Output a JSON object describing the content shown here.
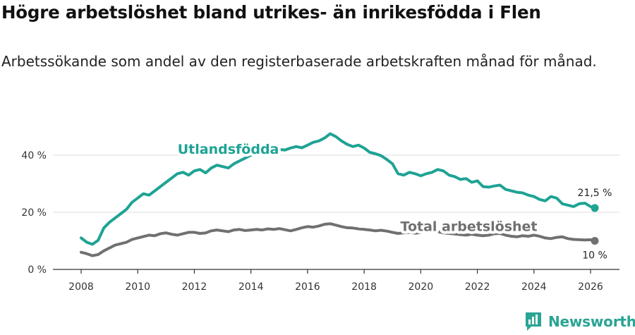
{
  "title": "Högre arbetslöshet bland utrikes- än inrikesfödda i Flen",
  "subtitle": "Arbetssökande som andel av den registerbaserade arbetskraften månad för månad.",
  "brand": {
    "name": "Newsworthy",
    "icon": "newsworthy-logo-icon"
  },
  "colors": {
    "foreign": "#1ea394",
    "total": "#707070",
    "grid": "#dddddd",
    "axis": "#333333"
  },
  "chart_data": {
    "type": "line",
    "title": "Högre arbetslöshet bland utrikes- än inrikesfödda i Flen",
    "xlabel": "",
    "ylabel": "",
    "xlim": [
      2007.5,
      2027.0
    ],
    "ylim": [
      0,
      50
    ],
    "x_ticks": [
      2008,
      2010,
      2012,
      2014,
      2016,
      2018,
      2020,
      2022,
      2024,
      2026
    ],
    "y_ticks": [
      {
        "value": 0,
        "label": "0 %"
      },
      {
        "value": 20,
        "label": "20 %"
      },
      {
        "value": 40,
        "label": "40 %"
      }
    ],
    "grid": true,
    "series": [
      {
        "name": "Utlandsfödda",
        "color": "#1ea394",
        "end_label": "21,5 %",
        "end_value": 21.5,
        "points": [
          [
            2008.0,
            11.0
          ],
          [
            2008.2,
            9.5
          ],
          [
            2008.4,
            8.8
          ],
          [
            2008.6,
            10.2
          ],
          [
            2008.8,
            14.5
          ],
          [
            2009.0,
            16.5
          ],
          [
            2009.2,
            18.0
          ],
          [
            2009.4,
            19.5
          ],
          [
            2009.6,
            21.0
          ],
          [
            2009.8,
            23.5
          ],
          [
            2010.0,
            25.0
          ],
          [
            2010.2,
            26.5
          ],
          [
            2010.4,
            26.0
          ],
          [
            2010.6,
            27.5
          ],
          [
            2010.8,
            29.0
          ],
          [
            2011.0,
            30.5
          ],
          [
            2011.2,
            32.0
          ],
          [
            2011.4,
            33.5
          ],
          [
            2011.6,
            34.0
          ],
          [
            2011.8,
            33.0
          ],
          [
            2012.0,
            34.5
          ],
          [
            2012.2,
            35.0
          ],
          [
            2012.4,
            33.8
          ],
          [
            2012.6,
            35.5
          ],
          [
            2012.8,
            36.5
          ],
          [
            2013.0,
            36.0
          ],
          [
            2013.2,
            35.5
          ],
          [
            2013.4,
            37.0
          ],
          [
            2013.6,
            38.0
          ],
          [
            2013.8,
            39.0
          ],
          [
            2014.0,
            40.0
          ],
          [
            2014.2,
            40.5
          ],
          [
            2014.4,
            41.0
          ],
          [
            2014.6,
            40.8
          ],
          [
            2014.8,
            41.5
          ],
          [
            2015.0,
            42.0
          ],
          [
            2015.2,
            41.8
          ],
          [
            2015.4,
            42.5
          ],
          [
            2015.6,
            43.0
          ],
          [
            2015.8,
            42.6
          ],
          [
            2016.0,
            43.5
          ],
          [
            2016.2,
            44.5
          ],
          [
            2016.4,
            45.0
          ],
          [
            2016.6,
            46.0
          ],
          [
            2016.8,
            47.5
          ],
          [
            2017.0,
            46.5
          ],
          [
            2017.2,
            45.0
          ],
          [
            2017.4,
            43.8
          ],
          [
            2017.6,
            43.0
          ],
          [
            2017.8,
            43.5
          ],
          [
            2018.0,
            42.5
          ],
          [
            2018.2,
            41.0
          ],
          [
            2018.4,
            40.5
          ],
          [
            2018.6,
            39.8
          ],
          [
            2018.8,
            38.5
          ],
          [
            2019.0,
            37.0
          ],
          [
            2019.2,
            33.5
          ],
          [
            2019.4,
            33.0
          ],
          [
            2019.6,
            34.0
          ],
          [
            2019.8,
            33.5
          ],
          [
            2020.0,
            32.8
          ],
          [
            2020.2,
            33.5
          ],
          [
            2020.4,
            34.0
          ],
          [
            2020.6,
            35.0
          ],
          [
            2020.8,
            34.5
          ],
          [
            2021.0,
            33.0
          ],
          [
            2021.2,
            32.5
          ],
          [
            2021.4,
            31.5
          ],
          [
            2021.6,
            31.8
          ],
          [
            2021.8,
            30.5
          ],
          [
            2022.0,
            31.0
          ],
          [
            2022.2,
            29.0
          ],
          [
            2022.4,
            28.8
          ],
          [
            2022.6,
            29.2
          ],
          [
            2022.8,
            29.5
          ],
          [
            2023.0,
            28.0
          ],
          [
            2023.2,
            27.5
          ],
          [
            2023.4,
            27.0
          ],
          [
            2023.6,
            26.8
          ],
          [
            2023.8,
            26.0
          ],
          [
            2024.0,
            25.5
          ],
          [
            2024.2,
            24.5
          ],
          [
            2024.4,
            24.0
          ],
          [
            2024.6,
            25.5
          ],
          [
            2024.8,
            25.0
          ],
          [
            2025.0,
            23.0
          ],
          [
            2025.2,
            22.5
          ],
          [
            2025.4,
            22.0
          ],
          [
            2025.6,
            23.0
          ],
          [
            2025.8,
            23.2
          ],
          [
            2026.0,
            22.0
          ],
          [
            2026.15,
            21.5
          ]
        ]
      },
      {
        "name": "Total arbetslöshet",
        "color": "#707070",
        "end_label": "10 %",
        "end_value": 10,
        "points": [
          [
            2008.0,
            6.0
          ],
          [
            2008.2,
            5.5
          ],
          [
            2008.4,
            4.8
          ],
          [
            2008.6,
            5.2
          ],
          [
            2008.8,
            6.5
          ],
          [
            2009.0,
            7.5
          ],
          [
            2009.2,
            8.5
          ],
          [
            2009.4,
            9.0
          ],
          [
            2009.6,
            9.5
          ],
          [
            2009.8,
            10.5
          ],
          [
            2010.0,
            11.0
          ],
          [
            2010.2,
            11.5
          ],
          [
            2010.4,
            12.0
          ],
          [
            2010.6,
            11.8
          ],
          [
            2010.8,
            12.5
          ],
          [
            2011.0,
            12.8
          ],
          [
            2011.2,
            12.3
          ],
          [
            2011.4,
            12.0
          ],
          [
            2011.6,
            12.5
          ],
          [
            2011.8,
            13.0
          ],
          [
            2012.0,
            13.0
          ],
          [
            2012.2,
            12.6
          ],
          [
            2012.4,
            12.8
          ],
          [
            2012.6,
            13.5
          ],
          [
            2012.8,
            13.8
          ],
          [
            2013.0,
            13.5
          ],
          [
            2013.2,
            13.2
          ],
          [
            2013.4,
            13.8
          ],
          [
            2013.6,
            14.0
          ],
          [
            2013.8,
            13.6
          ],
          [
            2014.0,
            13.8
          ],
          [
            2014.2,
            14.0
          ],
          [
            2014.4,
            13.8
          ],
          [
            2014.6,
            14.2
          ],
          [
            2014.8,
            14.0
          ],
          [
            2015.0,
            14.3
          ],
          [
            2015.2,
            13.9
          ],
          [
            2015.4,
            13.5
          ],
          [
            2015.6,
            14.0
          ],
          [
            2015.8,
            14.6
          ],
          [
            2016.0,
            15.0
          ],
          [
            2016.2,
            14.8
          ],
          [
            2016.4,
            15.2
          ],
          [
            2016.6,
            15.8
          ],
          [
            2016.8,
            16.0
          ],
          [
            2017.0,
            15.5
          ],
          [
            2017.2,
            15.0
          ],
          [
            2017.4,
            14.6
          ],
          [
            2017.6,
            14.5
          ],
          [
            2017.8,
            14.2
          ],
          [
            2018.0,
            14.0
          ],
          [
            2018.2,
            13.8
          ],
          [
            2018.4,
            13.5
          ],
          [
            2018.6,
            13.7
          ],
          [
            2018.8,
            13.4
          ],
          [
            2019.0,
            13.0
          ],
          [
            2019.2,
            12.6
          ],
          [
            2019.4,
            12.8
          ],
          [
            2019.6,
            13.0
          ],
          [
            2019.8,
            12.7
          ],
          [
            2020.0,
            12.9
          ],
          [
            2020.2,
            13.3
          ],
          [
            2020.4,
            13.5
          ],
          [
            2020.6,
            13.2
          ],
          [
            2020.8,
            12.8
          ],
          [
            2021.0,
            12.6
          ],
          [
            2021.2,
            12.4
          ],
          [
            2021.4,
            12.2
          ],
          [
            2021.6,
            12.0
          ],
          [
            2021.8,
            12.3
          ],
          [
            2022.0,
            12.0
          ],
          [
            2022.2,
            11.8
          ],
          [
            2022.4,
            12.0
          ],
          [
            2022.6,
            12.5
          ],
          [
            2022.8,
            12.6
          ],
          [
            2023.0,
            12.0
          ],
          [
            2023.2,
            11.6
          ],
          [
            2023.4,
            11.4
          ],
          [
            2023.6,
            11.8
          ],
          [
            2023.8,
            11.6
          ],
          [
            2024.0,
            12.0
          ],
          [
            2024.2,
            11.6
          ],
          [
            2024.4,
            11.0
          ],
          [
            2024.6,
            10.8
          ],
          [
            2024.8,
            11.2
          ],
          [
            2025.0,
            11.4
          ],
          [
            2025.2,
            10.8
          ],
          [
            2025.4,
            10.5
          ],
          [
            2025.6,
            10.4
          ],
          [
            2025.8,
            10.3
          ],
          [
            2026.0,
            10.4
          ],
          [
            2026.15,
            10.0
          ]
        ]
      }
    ],
    "annotations": [
      {
        "text": "Utlandsfödda",
        "series": "Utlandsfödda",
        "x": 2013.2,
        "y": 40.5
      },
      {
        "text": "Total arbetslöshet",
        "series": "Total arbetslöshet",
        "x": 2021.7,
        "y": 13.5
      }
    ]
  }
}
